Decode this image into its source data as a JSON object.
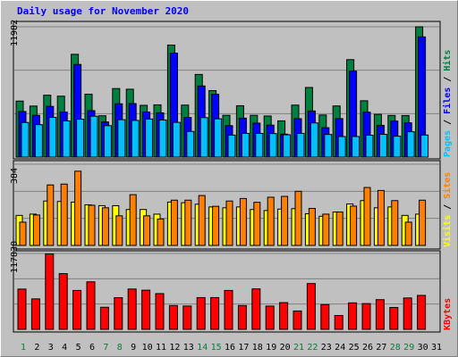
{
  "chart_data": {
    "title": "Daily usage for November 2020",
    "type": "bar",
    "days": [
      "1",
      "2",
      "3",
      "4",
      "5",
      "6",
      "7",
      "8",
      "9",
      "10",
      "11",
      "12",
      "13",
      "14",
      "15",
      "16",
      "17",
      "18",
      "19",
      "20",
      "21",
      "22",
      "23",
      "24",
      "25",
      "26",
      "27",
      "28",
      "29",
      "30",
      "31"
    ],
    "weekend_days": [
      "1",
      "7",
      "8",
      "14",
      "15",
      "21",
      "22",
      "28",
      "29"
    ],
    "panels": [
      {
        "id": "top",
        "ymax_label": "11982",
        "ymax": 11982,
        "right_label_parts": [
          {
            "text": "Pages",
            "color": "#00c0ff"
          },
          {
            "text": " / ",
            "color": "#000000"
          },
          {
            "text": "Files",
            "color": "#0000ff"
          },
          {
            "text": " / ",
            "color": "#000000"
          },
          {
            "text": "Hits",
            "color": "#008040"
          }
        ],
        "series": [
          {
            "name": "Hits",
            "color": "#008040",
            "values": [
              5150,
              4690,
              5690,
              5600,
              9450,
              5780,
              3800,
              6300,
              6240,
              4760,
              4800,
              10300,
              4780,
              7600,
              6110,
              3840,
              4720,
              3840,
              3780,
              3330,
              4780,
              6400,
              3870,
              4700,
              8960,
              5180,
              3930,
              3830,
              3820,
              11980,
              null
            ]
          },
          {
            "name": "Files",
            "color": "#0000ff",
            "values": [
              4190,
              3840,
              4660,
              4140,
              8520,
              4270,
              3230,
              4900,
              4920,
              4140,
              4070,
              9560,
              3640,
              6540,
              5780,
              2890,
              3580,
              3120,
              2940,
              2110,
              3530,
              4240,
              2700,
              3540,
              7900,
              4130,
              2920,
              3310,
              3150,
              11050,
              null
            ]
          },
          {
            "name": "Pages",
            "color": "#00c0ff",
            "values": [
              3180,
              2980,
              3650,
              3330,
              3480,
              3760,
              2890,
              3440,
              3370,
              3500,
              3410,
              3190,
              2360,
              3630,
              3520,
              2020,
              2180,
              2180,
              2160,
              2050,
              2180,
              3140,
              2080,
              1890,
              1890,
              2010,
              2090,
              1920,
              2330,
              2030,
              null
            ]
          }
        ]
      },
      {
        "id": "middle",
        "ymax_label": "384",
        "ymax": 384,
        "right_label_parts": [
          {
            "text": "Visits",
            "color": "#ffff00"
          },
          {
            "text": " / ",
            "color": "#000000"
          },
          {
            "text": "Sites",
            "color": "#ff8000"
          }
        ],
        "series": [
          {
            "name": "Visits",
            "color": "#ffff00",
            "values": [
              142,
              148,
              210,
              208,
              205,
              192,
              188,
              188,
              170,
              170,
              148,
              205,
              202,
              195,
              182,
              178,
              182,
              170,
              165,
              172,
              174,
              150,
              138,
              158,
              196,
              212,
              178,
              182,
              142,
              148,
              null
            ]
          },
          {
            "name": "Sites",
            "color": "#ff8000",
            "values": [
              110,
              144,
              286,
              290,
              351,
              190,
              178,
              140,
              240,
              140,
              125,
              214,
              214,
              236,
              185,
              210,
              222,
              204,
              228,
              232,
              256,
              175,
              148,
              158,
              186,
              274,
              260,
              212,
              110,
              214,
              null
            ]
          }
        ]
      },
      {
        "id": "bottom",
        "ymax_label": "117830",
        "ymax": 117830,
        "right_label_parts": [
          {
            "text": "KBytes",
            "color": "#ff0000"
          }
        ],
        "series": [
          {
            "name": "KBytes",
            "color": "#ff0000",
            "values": [
              62500,
              47300,
              117000,
              86600,
              60400,
              73800,
              34300,
              49100,
              62600,
              60800,
              55500,
              37000,
              36200,
              49300,
              49300,
              60400,
              37000,
              62800,
              36100,
              41500,
              28500,
              71100,
              38400,
              21500,
              41100,
              40000,
              46100,
              34000,
              48700,
              52700,
              null
            ]
          }
        ]
      }
    ]
  }
}
